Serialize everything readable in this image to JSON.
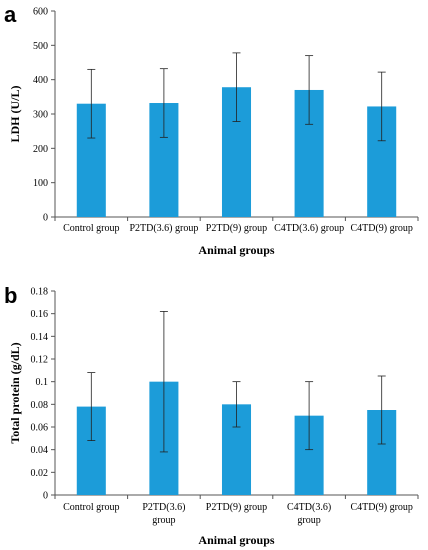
{
  "chart_data": [
    {
      "panel": "a",
      "type": "bar",
      "categories": [
        "Control group",
        "P2TD(3.6) group",
        "P2TD(9) group",
        "C4TD(3.6) group",
        "C4TD(9) group"
      ],
      "category_lines": [
        [
          "Control group"
        ],
        [
          "P2TD(3.6) group"
        ],
        [
          "P2TD(9) group"
        ],
        [
          "C4TD(3.6) group"
        ],
        [
          "C4TD(9) group"
        ]
      ],
      "values": [
        330,
        332,
        378,
        370,
        322
      ],
      "errors": [
        100,
        100,
        100,
        100,
        100
      ],
      "xlabel": "Animal groups",
      "ylabel": "LDH (U/L)",
      "ylim": [
        0,
        600
      ],
      "yticks": [
        0,
        100,
        200,
        300,
        400,
        500,
        600
      ],
      "ytick_labels": [
        "0",
        "100",
        "200",
        "300",
        "400",
        "500",
        "600"
      ],
      "bar_color": "#1c9cd9",
      "grid": false
    },
    {
      "panel": "b",
      "type": "bar",
      "categories": [
        "Control group",
        "P2TD(3.6) group",
        "P2TD(9) group",
        "C4TD(3.6) group",
        "C4TD(9) group"
      ],
      "category_lines": [
        [
          "Control group"
        ],
        [
          "P2TD(3.6)",
          "group"
        ],
        [
          "P2TD(9) group"
        ],
        [
          "C4TD(3.6)",
          "group"
        ],
        [
          "C4TD(9) group"
        ]
      ],
      "values": [
        0.078,
        0.1,
        0.08,
        0.07,
        0.075
      ],
      "errors": [
        0.03,
        0.062,
        0.02,
        0.03,
        0.03
      ],
      "xlabel": "Animal groups",
      "ylabel": "Total protein (g/dL)",
      "ylim": [
        0,
        0.18
      ],
      "yticks": [
        0,
        0.02,
        0.04,
        0.06,
        0.08,
        0.1,
        0.12,
        0.14,
        0.16,
        0.18
      ],
      "ytick_labels": [
        "0",
        "0.02",
        "0.04",
        "0.06",
        "0.08",
        "0.1",
        "0.12",
        "0.14",
        "0.16",
        "0.18"
      ],
      "bar_color": "#1c9cd9",
      "grid": false
    }
  ]
}
